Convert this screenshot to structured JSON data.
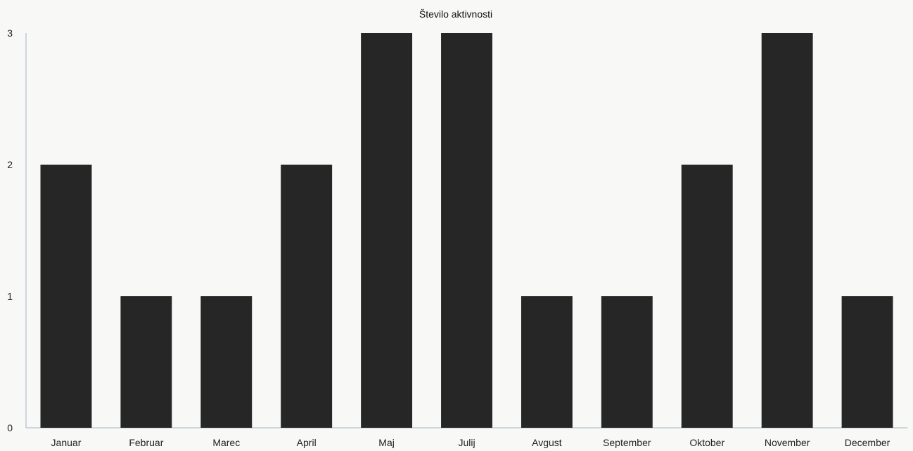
{
  "chart_data": {
    "type": "bar",
    "title": "Število aktivnosti",
    "xlabel": "",
    "ylabel": "",
    "categories": [
      "Januar",
      "Februar",
      "Marec",
      "April",
      "Maj",
      "Julij",
      "Avgust",
      "September",
      "Oktober",
      "November",
      "December"
    ],
    "values": [
      2,
      1,
      1,
      2,
      3,
      3,
      1,
      1,
      2,
      3,
      1
    ],
    "ylim": [
      0,
      3
    ],
    "yticks": [
      "0",
      "1",
      "2",
      "3"
    ],
    "grid": false,
    "legend": "none",
    "bar_color": "#262626",
    "axis_color": "#9fb3c8"
  }
}
